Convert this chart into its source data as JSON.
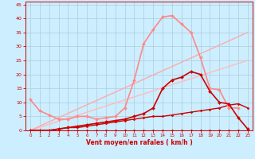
{
  "xlabel": "Vent moyen/en rafales ( km/h )",
  "bg_color": "#cceeff",
  "grid_color": "#aaccdd",
  "xlim": [
    -0.5,
    23.5
  ],
  "ylim": [
    0,
    46
  ],
  "yticks": [
    0,
    5,
    10,
    15,
    20,
    25,
    30,
    35,
    40,
    45
  ],
  "xticks": [
    0,
    1,
    2,
    3,
    4,
    5,
    6,
    7,
    8,
    9,
    10,
    11,
    12,
    13,
    14,
    15,
    16,
    17,
    18,
    19,
    20,
    21,
    22,
    23
  ],
  "series": [
    {
      "x": [
        0,
        1,
        2,
        3,
        4,
        5,
        6,
        7,
        8,
        9,
        10,
        11,
        12,
        13,
        14,
        15,
        16,
        17,
        18,
        19,
        20,
        21,
        22,
        23
      ],
      "y": [
        0,
        0,
        0,
        0,
        0,
        0,
        0,
        0,
        0,
        0,
        0,
        0,
        0,
        0,
        0,
        0,
        0,
        0,
        0,
        0,
        0,
        0,
        0,
        0
      ],
      "color": "#cc0000",
      "lw": 0.8,
      "marker": "D",
      "ms": 1.5,
      "zorder": 3
    },
    {
      "x": [
        0,
        23
      ],
      "y": [
        0,
        25
      ],
      "color": "#ffbbbb",
      "lw": 1.0,
      "marker": null,
      "ms": 0,
      "zorder": 2
    },
    {
      "x": [
        0,
        23
      ],
      "y": [
        0,
        35
      ],
      "color": "#ffaaaa",
      "lw": 1.0,
      "marker": null,
      "ms": 0,
      "zorder": 2
    },
    {
      "x": [
        0,
        1,
        2,
        3,
        4,
        5,
        6,
        7,
        8,
        9,
        10,
        11,
        12,
        13,
        14,
        15,
        16,
        17,
        18,
        19,
        20,
        21,
        22,
        23
      ],
      "y": [
        0,
        0,
        0,
        0.5,
        1,
        1,
        1.5,
        2,
        2.5,
        3,
        3.5,
        4,
        4.5,
        5,
        5,
        5.5,
        6,
        6.5,
        7,
        7.5,
        8,
        9,
        9.5,
        8
      ],
      "color": "#cc0000",
      "lw": 1.0,
      "marker": "D",
      "ms": 1.5,
      "zorder": 3
    },
    {
      "x": [
        0,
        1,
        2,
        3,
        4,
        5,
        6,
        7,
        8,
        9,
        10,
        11,
        12,
        13,
        14,
        15,
        16,
        17,
        18,
        19,
        20,
        21,
        22,
        23
      ],
      "y": [
        0,
        0,
        0,
        0.5,
        1,
        1.5,
        2,
        2.5,
        3,
        3.5,
        4,
        5,
        6,
        8,
        15,
        18,
        19,
        21,
        20,
        14,
        10,
        9.5,
        4.5,
        0.5
      ],
      "color": "#cc0000",
      "lw": 1.2,
      "marker": "D",
      "ms": 2.0,
      "zorder": 4
    },
    {
      "x": [
        0,
        1,
        2,
        3,
        4,
        5,
        6,
        7,
        8,
        9,
        10,
        11,
        12,
        13,
        14,
        15,
        16,
        17,
        18,
        19,
        20,
        21,
        22,
        23
      ],
      "y": [
        11,
        7,
        5.5,
        4,
        4,
        5,
        5,
        4,
        4.5,
        5,
        8,
        18,
        31,
        36,
        40.5,
        41,
        38,
        35,
        26,
        15,
        14.5,
        8,
        8,
        null
      ],
      "color": "#ff8888",
      "lw": 1.2,
      "marker": "D",
      "ms": 2.0,
      "zorder": 3
    }
  ]
}
